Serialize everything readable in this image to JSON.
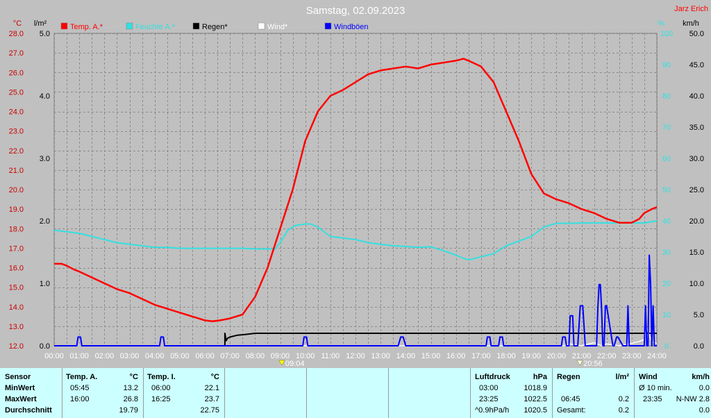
{
  "header": {
    "title": "Samstag, 02.09.2023",
    "author": "Jarz Erich",
    "unit_temp": "°C",
    "unit_rain": "l/m²",
    "unit_pct": "%",
    "unit_kmh": "km/h"
  },
  "legend": [
    {
      "label": "Temp. A.*",
      "color": "#ff0000"
    },
    {
      "label": "Feuchte A.*",
      "color": "#33e0e0"
    },
    {
      "label": "Regen*",
      "color": "#000000"
    },
    {
      "label": "Wind*",
      "color": "#ffffff"
    },
    {
      "label": "Windböen",
      "color": "#0000ff"
    }
  ],
  "markers": {
    "sunrise": "09:04",
    "sunset": "20:56"
  },
  "chart_data": {
    "type": "line",
    "title": "Samstag, 02.09.2023",
    "x_unit": "hours",
    "x_ticks": [
      "00:00",
      "01:00",
      "02:00",
      "03:00",
      "04:00",
      "05:00",
      "06:00",
      "07:00",
      "08:00",
      "09:00",
      "10:00",
      "11:00",
      "12:00",
      "13:00",
      "14:00",
      "15:00",
      "16:00",
      "17:00",
      "18:00",
      "19:00",
      "20:00",
      "21:00",
      "22:00",
      "23:00",
      "24:00"
    ],
    "xlim": [
      0,
      24
    ],
    "grid": true,
    "legend_position": "top",
    "axes": {
      "temp": {
        "label": "°C",
        "ylim": [
          12.0,
          28.0
        ],
        "ticks": [
          "12.0",
          "13.0",
          "14.0",
          "15.0",
          "16.0",
          "17.0",
          "18.0",
          "19.0",
          "20.0",
          "21.0",
          "22.0",
          "23.0",
          "24.0",
          "25.0",
          "26.0",
          "27.0",
          "28.0"
        ],
        "color": "#cc0000"
      },
      "rain": {
        "label": "l/m²",
        "ylim": [
          0,
          5.0
        ],
        "ticks": [
          "0.0",
          "1.0",
          "2.0",
          "3.0",
          "4.0",
          "5.0"
        ],
        "color": "#000000"
      },
      "humidity": {
        "label": "%",
        "ylim": [
          0,
          100
        ],
        "ticks": [
          "0",
          "10",
          "20",
          "30",
          "40",
          "50",
          "60",
          "70",
          "80",
          "90",
          "100"
        ],
        "color": "#33e0e0"
      },
      "wind": {
        "label": "km/h",
        "ylim": [
          0,
          50
        ],
        "ticks": [
          "0.0",
          "5.0",
          "10.0",
          "15.0",
          "20.0",
          "25.0",
          "30.0",
          "35.0",
          "40.0",
          "45.0",
          "50.0"
        ],
        "color": "#000000"
      }
    },
    "series": [
      {
        "name": "Temp. A.*",
        "axis": "temp",
        "color": "#ff0000",
        "x": [
          0,
          0.3,
          0.5,
          0.8,
          1,
          1.5,
          2,
          2.5,
          3,
          3.5,
          4,
          4.5,
          5,
          5.5,
          5.75,
          6,
          6.3,
          6.6,
          7,
          7.5,
          8,
          8.5,
          9,
          9.5,
          10,
          10.5,
          11,
          11.5,
          12,
          12.5,
          13,
          13.5,
          14,
          14.5,
          15,
          15.5,
          16,
          16.3,
          16.5,
          17,
          17.5,
          18,
          18.5,
          19,
          19.5,
          20,
          20.5,
          21,
          21.5,
          22,
          22.5,
          23,
          23.3,
          23.5,
          23.8,
          24
        ],
        "y": [
          16.2,
          16.2,
          16.1,
          15.9,
          15.8,
          15.5,
          15.2,
          14.9,
          14.7,
          14.4,
          14.1,
          13.9,
          13.7,
          13.5,
          13.4,
          13.3,
          13.25,
          13.3,
          13.4,
          13.6,
          14.5,
          16.0,
          18.0,
          20.0,
          22.5,
          24.0,
          24.8,
          25.1,
          25.5,
          25.9,
          26.1,
          26.2,
          26.3,
          26.2,
          26.4,
          26.5,
          26.6,
          26.7,
          26.6,
          26.3,
          25.5,
          24.0,
          22.5,
          20.8,
          19.8,
          19.5,
          19.3,
          19.0,
          18.8,
          18.5,
          18.3,
          18.3,
          18.5,
          18.8,
          19.0,
          19.1
        ]
      },
      {
        "name": "Feuchte A.*",
        "axis": "humidity",
        "color": "#33e0e0",
        "x": [
          0,
          0.5,
          1,
          1.5,
          2,
          2.5,
          3,
          3.5,
          4,
          4.5,
          5,
          5.5,
          6,
          6.5,
          7,
          7.5,
          8,
          8.5,
          8.8,
          9,
          9.3,
          9.6,
          10,
          10.2,
          10.5,
          11,
          11.5,
          12,
          12.5,
          13,
          13.5,
          14,
          14.5,
          15,
          15.5,
          16,
          16.3,
          16.5,
          17,
          17.5,
          18,
          18.5,
          19,
          19.5,
          20,
          20.5,
          21,
          21.5,
          22,
          22.5,
          23,
          23.5,
          24
        ],
        "y": [
          37,
          36.5,
          36,
          35,
          34,
          33,
          32.5,
          32,
          31.5,
          31.5,
          31.2,
          31.2,
          31.2,
          31.2,
          31.2,
          31.2,
          31.0,
          31.0,
          31.0,
          33,
          37,
          38.5,
          39,
          39,
          38,
          35,
          34.5,
          34,
          33,
          32.5,
          32,
          31.8,
          31.5,
          31.7,
          30.5,
          29,
          28,
          27.5,
          28.5,
          29.5,
          32,
          33.5,
          35,
          38,
          39.2,
          39.2,
          39.3,
          39.3,
          39.3,
          39.3,
          39.3,
          39.3,
          40
        ]
      },
      {
        "name": "Regen*",
        "axis": "rain",
        "color": "#000000",
        "x": [
          0,
          6.8,
          6.8,
          6.85,
          6.9,
          7,
          7.3,
          7.6,
          8,
          9,
          12,
          15,
          18,
          21,
          24
        ],
        "y": [
          0,
          0,
          0.2,
          0.08,
          0.12,
          0.14,
          0.17,
          0.18,
          0.2,
          0.2,
          0.2,
          0.2,
          0.2,
          0.2,
          0.2
        ]
      },
      {
        "name": "Wind*",
        "axis": "wind",
        "color": "#ffffff",
        "x": [
          0,
          20.3,
          20.5,
          21,
          21.5,
          21.8,
          22,
          22.5,
          23,
          23.3,
          23.5,
          23.6,
          23.8,
          24
        ],
        "y": [
          0,
          0,
          0.3,
          0,
          0.5,
          0,
          0.3,
          0,
          0.4,
          0.7,
          1.0,
          2.8,
          0.6,
          0.4
        ]
      },
      {
        "name": "Windböen",
        "axis": "wind",
        "color": "#0000ff",
        "x": [
          0,
          0.9,
          0.95,
          1.05,
          1.1,
          4.2,
          4.25,
          4.35,
          4.4,
          9.9,
          9.95,
          10.05,
          10.1,
          13.7,
          13.8,
          13.9,
          14.0,
          17.2,
          17.25,
          17.35,
          17.4,
          17.7,
          17.75,
          17.85,
          17.9,
          20.2,
          20.25,
          20.35,
          20.4,
          20.5,
          20.55,
          20.65,
          20.7,
          20.85,
          20.95,
          21.0,
          21.05,
          21.15,
          21.2,
          21.6,
          21.65,
          21.7,
          21.75,
          21.8,
          21.85,
          21.9,
          21.95,
          22.0,
          22.25,
          22.3,
          22.4,
          22.45,
          22.65,
          22.7,
          22.8,
          22.85,
          22.9,
          23.5,
          23.55,
          23.6,
          23.65,
          23.7,
          23.75,
          23.8,
          23.85,
          23.9,
          23.95,
          24
        ],
        "y": [
          0,
          0,
          1.4,
          1.4,
          0,
          0,
          1.4,
          1.4,
          0,
          0,
          1.4,
          1.4,
          0,
          0,
          1.4,
          1.4,
          0,
          0,
          1.4,
          1.4,
          0,
          0,
          1.4,
          1.4,
          0,
          0,
          1.4,
          1.4,
          0,
          0,
          4.8,
          4.8,
          0,
          0,
          6.4,
          6.4,
          6.4,
          0,
          0,
          0,
          6.0,
          9.8,
          9.8,
          6.0,
          0,
          0,
          6.4,
          6.4,
          0,
          0,
          1.4,
          1.4,
          0,
          0,
          0,
          6.4,
          0,
          0,
          6.4,
          0,
          0,
          14.5,
          10,
          0,
          6.4,
          0,
          0,
          0
        ]
      }
    ]
  },
  "stats": {
    "sensor": {
      "header": "Sensor",
      "rows": [
        "MinWert",
        "MaxWert",
        "Durchschnitt"
      ]
    },
    "temp_a": {
      "header": "Temp. A.",
      "unit": "°C",
      "min_time": "05:45",
      "min_val": "13.2",
      "max_time": "16:00",
      "max_val": "26.8",
      "avg": "19.79"
    },
    "temp_i": {
      "header": "Temp. I.",
      "unit": "°C",
      "min_time": "06:00",
      "min_val": "22.1",
      "max_time": "16:25",
      "max_val": "23.7",
      "avg": "22.75"
    },
    "pressure": {
      "header": "Luftdruck",
      "unit": "hPa",
      "min_time": "03:00",
      "min_val": "1018.9",
      "max_time": "23:25",
      "max_val": "1022.5",
      "trend_label": "^0.9hPa/h",
      "trend_val": "1020.5"
    },
    "rain": {
      "header": "Regen",
      "unit": "l/m²",
      "max_time": "06:45",
      "max_val": "0.2",
      "total_label": "Gesamt:",
      "total_val": "0.2"
    },
    "wind": {
      "header": "Wind",
      "unit": "km/h",
      "avg_label": "Ø 10 min.",
      "avg_val": "0.0",
      "max_time": "23:35",
      "max_val": "N-NW 2.8",
      "last_val": "0.0"
    }
  }
}
